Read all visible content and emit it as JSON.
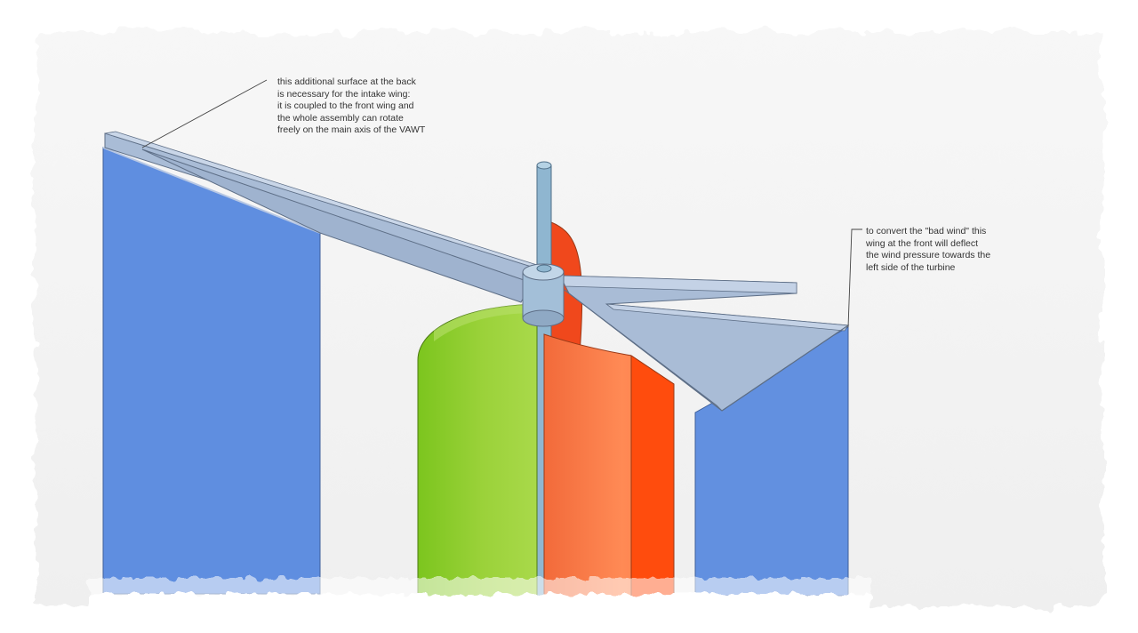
{
  "annotations": {
    "back_surface": {
      "lines": [
        "this additional surface at the back",
        "is necessary for the intake wing:",
        "it is coupled to the front wing and",
        "the whole assembly can rotate",
        "freely on the main axis of the VAWT"
      ]
    },
    "front_wing": {
      "lines": [
        "to convert the \"bad wind\" this",
        "wing at the front will deflect",
        "the wind pressure towards the",
        "left side of the turbine"
      ]
    }
  },
  "colors": {
    "back_panel": "#5f8ee0",
    "front_panel": "#6290e0",
    "wing": "#a9bcd6",
    "wing_edge": "#5e6f87",
    "shaft": "#8fb6d0",
    "green_blade": "#8fcf34",
    "orange_blade": "#ff6a2e",
    "orange_back": "#f0481c",
    "paper": "#f3f3f3"
  }
}
